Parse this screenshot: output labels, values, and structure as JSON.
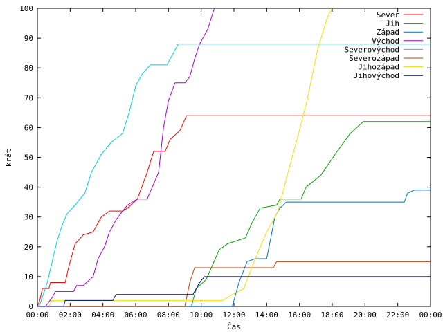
{
  "chart_data": {
    "type": "line",
    "title": "",
    "xlabel": "Čas",
    "ylabel": "krát",
    "xlim": [
      0,
      24
    ],
    "ylim": [
      0,
      100
    ],
    "grid": false,
    "legend_position": "top-right",
    "x_ticks": [
      0,
      2,
      4,
      6,
      8,
      10,
      12,
      14,
      16,
      18,
      20,
      22,
      24
    ],
    "x_tick_labels": [
      "00:00",
      "02:00",
      "04:00",
      "06:00",
      "08:00",
      "10:00",
      "12:00",
      "14:00",
      "16:00",
      "18:00",
      "20:00",
      "22:00",
      "00:00"
    ],
    "y_ticks": [
      0,
      10,
      20,
      30,
      40,
      50,
      60,
      70,
      80,
      90,
      100
    ],
    "y_tick_labels": [
      "0",
      "10",
      "20",
      "30",
      "40",
      "50",
      "60",
      "70",
      "80",
      "90",
      "100"
    ],
    "series": [
      {
        "name": "Sever",
        "color": "#ff0000",
        "points": [
          [
            0,
            0
          ],
          [
            0.15,
            2
          ],
          [
            0.3,
            6
          ],
          [
            0.7,
            6
          ],
          [
            0.8,
            8
          ],
          [
            1.7,
            8
          ],
          [
            1.9,
            13
          ],
          [
            2.3,
            21
          ],
          [
            2.8,
            24
          ],
          [
            3.4,
            25
          ],
          [
            3.9,
            30
          ],
          [
            4.4,
            32
          ],
          [
            5.2,
            32
          ],
          [
            5.5,
            33
          ],
          [
            6.1,
            36
          ],
          [
            6.7,
            45
          ],
          [
            7.1,
            52
          ],
          [
            7.8,
            52
          ],
          [
            8.1,
            56
          ],
          [
            8.7,
            59
          ],
          [
            9.1,
            64
          ],
          [
            24,
            64
          ]
        ]
      },
      {
        "name": "Jih",
        "color": "#00a000",
        "points": [
          [
            0,
            0
          ],
          [
            9.4,
            0
          ],
          [
            9.7,
            6
          ],
          [
            10.3,
            9
          ],
          [
            10.7,
            14
          ],
          [
            11.1,
            19
          ],
          [
            11.6,
            21
          ],
          [
            12.7,
            23
          ],
          [
            13.1,
            28
          ],
          [
            13.6,
            33
          ],
          [
            14.6,
            34
          ],
          [
            14.8,
            36
          ],
          [
            16.1,
            36
          ],
          [
            16.4,
            40
          ],
          [
            17.3,
            44
          ],
          [
            18.3,
            52
          ],
          [
            19.1,
            58
          ],
          [
            19.9,
            62
          ],
          [
            24,
            62
          ]
        ]
      },
      {
        "name": "Západ",
        "color": "#0070d0",
        "points": [
          [
            0,
            0
          ],
          [
            11.9,
            0
          ],
          [
            12.3,
            8
          ],
          [
            12.8,
            15
          ],
          [
            13.3,
            16
          ],
          [
            14.0,
            16
          ],
          [
            14.5,
            30
          ],
          [
            14.8,
            33
          ],
          [
            15.2,
            35
          ],
          [
            22.4,
            35
          ],
          [
            22.6,
            38
          ],
          [
            23.0,
            39
          ],
          [
            24,
            39
          ]
        ]
      },
      {
        "name": "Východ",
        "color": "#a000d0",
        "points": [
          [
            0,
            0
          ],
          [
            0.5,
            0
          ],
          [
            0.9,
            3
          ],
          [
            1.1,
            5
          ],
          [
            2.2,
            5
          ],
          [
            2.4,
            7
          ],
          [
            2.8,
            7
          ],
          [
            3.4,
            10
          ],
          [
            3.7,
            16
          ],
          [
            4.1,
            20
          ],
          [
            4.4,
            25
          ],
          [
            4.8,
            29
          ],
          [
            5.2,
            32
          ],
          [
            5.5,
            34
          ],
          [
            6.1,
            36
          ],
          [
            6.7,
            36
          ],
          [
            7.4,
            45
          ],
          [
            7.7,
            60
          ],
          [
            8.0,
            69
          ],
          [
            8.4,
            75
          ],
          [
            9.0,
            75
          ],
          [
            9.3,
            77
          ],
          [
            9.6,
            83
          ],
          [
            9.9,
            88
          ],
          [
            10.4,
            93
          ],
          [
            10.8,
            100
          ]
        ]
      },
      {
        "name": "Severovýchod",
        "color": "#00d0e0",
        "points": [
          [
            0,
            0
          ],
          [
            0.1,
            0
          ],
          [
            0.3,
            3
          ],
          [
            0.6,
            8
          ],
          [
            0.9,
            15
          ],
          [
            1.2,
            22
          ],
          [
            1.5,
            27
          ],
          [
            1.8,
            31
          ],
          [
            2.3,
            34
          ],
          [
            2.9,
            38
          ],
          [
            3.3,
            45
          ],
          [
            3.9,
            51
          ],
          [
            4.5,
            55
          ],
          [
            5.2,
            58
          ],
          [
            5.6,
            65
          ],
          [
            6.0,
            74
          ],
          [
            6.4,
            78
          ],
          [
            6.9,
            81
          ],
          [
            7.9,
            81
          ],
          [
            8.3,
            85
          ],
          [
            8.6,
            88
          ],
          [
            24,
            88
          ]
        ]
      },
      {
        "name": "Severozápad",
        "color": "#c04010",
        "points": [
          [
            0,
            0
          ],
          [
            9.0,
            0
          ],
          [
            9.3,
            8
          ],
          [
            9.6,
            13
          ],
          [
            14.4,
            13
          ],
          [
            14.6,
            15
          ],
          [
            24,
            15
          ]
        ]
      },
      {
        "name": "Jihozápad",
        "color": "#f0e000",
        "points": [
          [
            0,
            0
          ],
          [
            0.7,
            0
          ],
          [
            0.9,
            2
          ],
          [
            1.2,
            2
          ],
          [
            4.5,
            2
          ],
          [
            7.5,
            2
          ],
          [
            9.9,
            2
          ],
          [
            11.3,
            2
          ],
          [
            11.9,
            4
          ],
          [
            12.6,
            6
          ],
          [
            13.3,
            16
          ],
          [
            14.0,
            25
          ],
          [
            14.7,
            32
          ],
          [
            15.3,
            45
          ],
          [
            15.9,
            57
          ],
          [
            16.5,
            70
          ],
          [
            17.1,
            86
          ],
          [
            17.7,
            97
          ],
          [
            18.0,
            100
          ]
        ]
      },
      {
        "name": "Jihovýchod",
        "color": "#000080",
        "points": [
          [
            0,
            0
          ],
          [
            1.6,
            0
          ],
          [
            1.7,
            2
          ],
          [
            4.6,
            2
          ],
          [
            4.8,
            4
          ],
          [
            9.5,
            4
          ],
          [
            9.9,
            8
          ],
          [
            10.2,
            10
          ],
          [
            24,
            10
          ]
        ]
      }
    ]
  }
}
